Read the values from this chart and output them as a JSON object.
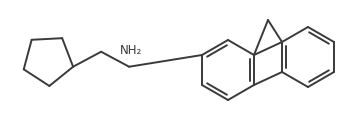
{
  "background_color": "#ffffff",
  "line_color": "#3a3a3a",
  "line_width": 1.4,
  "nh2_label": "NH₂",
  "nh2_fontsize": 8.5,
  "fig_width": 3.62,
  "fig_height": 1.35,
  "dpi": 100,
  "xlim": [
    0,
    362
  ],
  "ylim": [
    0,
    135
  ]
}
